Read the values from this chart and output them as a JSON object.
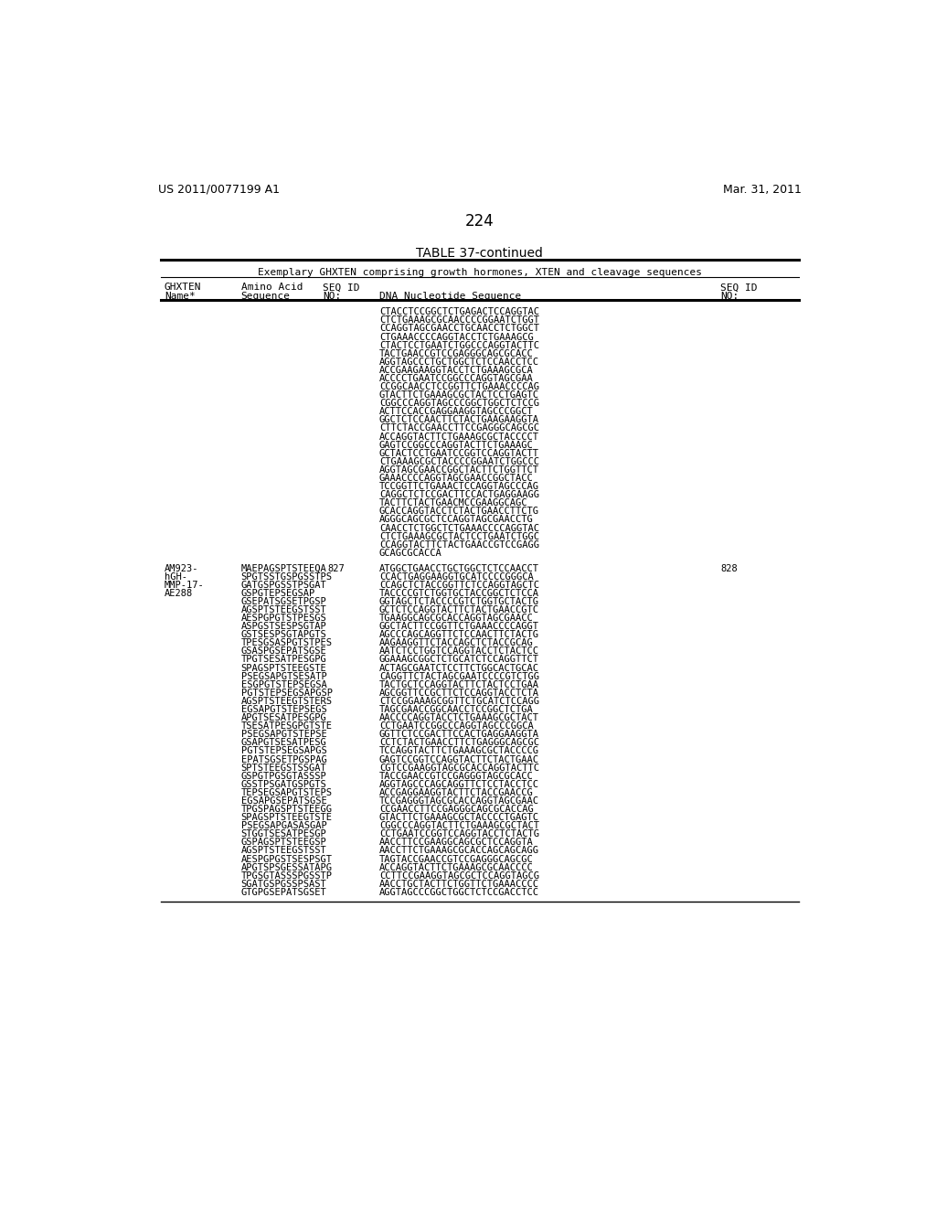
{
  "background_color": "#ffffff",
  "header_left": "US 2011/0077199 A1",
  "header_right": "Mar. 31, 2011",
  "page_number": "224",
  "table_title": "TABLE 37-continued",
  "table_subtitle": "Exemplary GHXTEN comprising growth hormones, XTEN and cleavage sequences",
  "dna_lines_top": [
    "CTACCTCCGGCTCTGAGACTCCAGGTAC",
    "CTCTGAAAGCGCAACCCCGGAATCTGGT",
    "CCAGGTAGCGAACCTGCAACCTCTGGCT",
    "CTGAAACCCCAGGTACCTCTGAAAGCG",
    "CTACTCCTGAATCTGGCCCAGGTACTTC",
    "TACTGAACCGTCCGAGGGCAGCGCACC",
    "AGGTAGCCCTGCTGGCTCTCCAACCTCC",
    "ACCGAAGAAGGTACCTCTGAAAGCGCA",
    "ACCCCTGAATCCGGCCCAGGTAGCGAA",
    "CCGGCAACCTCCGGTTCTGAAACCCCAG",
    "GTACTTCTGAAAGCGCTACTCCTGAGTC",
    "CGGCCCAGGTAGCCCGGCTGGCTCTCCG",
    "ACTTCCACCGAGGAAGGTAGCCCGGCT",
    "GGCTCTCCAACTTCTACTGAAGAAGGTA",
    "CTTCTACCGAACCTTCCGAGGGCAGCGC",
    "ACCAGGTACTTCTGAAAGCGCTACCCCT",
    "GAGTCCGGCCCAGGTACTTCTGAAAGC",
    "GCTACTCCTGAATCCGGTCCAGGTACTT",
    "CTGAAAGCGCTACCCCGGAATCTGGCCC",
    "AGGTAGCGAACCGGCTACTTCTGGTTCT",
    "GAAACCCCAGGTAGCGAACCGGCTACC",
    "TCCGGTTCTGAAACTCCAGGTAGCCCAG",
    "CAGGCTCTCCGACTTCCACTGAGGAAGG",
    "TACTTCTACTGAACMCCGAAGGCAGC",
    "GCACCAGGTACCTCTACTGAACCTTCTG",
    "AGGGCAGCGCTCCAGGTAGCGAACCTG",
    "CAACCTCTGGCTCTGAAACCCCAGGTAC",
    "CTCTGAAAGCGCTACTCCTGAATCTGGC",
    "CCAGGTACTTCTACTGAACCGTCCGAGG",
    "GCAGCGCACCA"
  ],
  "row2_names": [
    "AM923-",
    "hGH-",
    "MMP-17-",
    "AE288"
  ],
  "row2_aa": [
    "MAEPAGSPTSTEEQA",
    "SPGTSSTGSPGSSTPS",
    "GATGSPGSSTPSGAT",
    "GSPGTEPSEGSAP",
    "GSEPATSGSETPGSP",
    "AGSPTSTEEGSTSST",
    "AESPGPGTSTPESGS",
    "ASPGSTSESPSGTAP",
    "GSTSESPSGTAPGTS",
    "TPESGSASPGTSTPES",
    "GSASPGSEPATSGSE",
    "TPGTSESATPESGPG",
    "SPAGSPTSTEEGSTE",
    "PSEGSAPGTSESATP",
    "ESGPGTSTEPSEGSA",
    "PGTSTEPSEGSAPGSP",
    "AGSPTSTEEGTSTERS",
    "EGSAPGTSTEPSEGS",
    "APGTSESATPESGPG",
    "TSESATPESGPGTSTE",
    "PSEGSAPGTSTEPSE",
    "GSAPGTSESATPESG",
    "PGTSTEPSEGSAPGS",
    "EPATSGSETPGSPAG",
    "SPTSTEEGSTSSGAT",
    "GSPGTPGSGTASSSP",
    "GSSTPSGATGSPGTS",
    "TEPSEGSAPGTSTEPS",
    "EGSAPGSEPATSGSE",
    "TPGSPAGSPTSTEEGG",
    "SPAGSPTSTEEGTSTE",
    "PSEGSAPGASASGAP",
    "STGGTSESATPESGP",
    "GSPAGSPTSTEEGSP",
    "AGSPTSTEEGSTSST",
    "AESPGPGSTSESPSGT",
    "APGTSPSGESSATAPG",
    "TPGSGTASSSPGSSTP",
    "SGATGSPGSSPSAST",
    "GTGPGSEPATSGSET"
  ],
  "row2_seq_id": "827",
  "row2_seq_id2": "828",
  "row2_dna": [
    "ATGGCTGAACCTGCTGGCTCTCCAACCT",
    "CCACTGAGGAAGGTGCATCCCCGGGCA",
    "CCAGCTCTACCGGTTCTCCAGGTAGCTC",
    "TACCCCGTCTGGTGCTACCGGCTCTCCA",
    "GGTAGCTCTACCCCGTCTGGTGCTACTG",
    "GCTCTCCAGGTACTTCTACTGAACCGTC",
    "TGAAGGCAGCGCACCAGGTAGCGAACC",
    "GGCTACTTCCGGTTCTGAAACCCCAGGT",
    "AGCCCAGCAGGTTCTCCAACTTCTACTG",
    "AAGAAGGTTCTACCAGCTCTACCGCAG",
    "AATCTCCTGGTCCAGGTACCTCTACTCC",
    "GGAAAGCGGCTCTGCATCTCCAGGTTCT",
    "ACTAGCGAATCTCCTTCTGGCACTGCAC",
    "CAGGTTCTACTAGCGAATCCCCGTCTGG",
    "TACTGCTCCAGGTACTTCTACTCCTGAA",
    "AGCGGTTCCGCTTCTCCAGGTACCTCTA",
    "CTCCGGAAAGCGGTTCTGCATCTCCAGG",
    "TAGCGAACCGGCAACCTCCGGCTCTGA",
    "AACCCCAGGTACCTCTGAAAGCGCTACT",
    "CCTGAATCCGGCCCAGGTAGCCCGGCA",
    "GGTTCTCCGACTTCCACTGAGGAAGGTA",
    "CCTCTACTGAACCTTCTGAGGGCAGCGC",
    "TCCAGGTACTTCTGAAAGCGCTACCCCG",
    "GAGTCCGGTCCAGGTACTTCTACTGAAC",
    "CGTCCGAAGGTAGCGCACCAGGTACTTC",
    "TACCGAACCGTCCGAGGGTAGCGCACC",
    "AGGTAGCCCAGCAGGTTCTCCTACCTCC",
    "ACCGAGGAAGGTACTTCTACCGAACCG",
    "TCCGAGGGTAGCGCACCAGGTAGCGAAC",
    "CCGAACCTTCCGAGGGCAGCGCACCAG",
    "GTACTTCTGAAAGCGCTACCCCTGAGTC",
    "CGGCCCAGGTACTTCTGAAAGCGCTACT",
    "CCTGAATCCGGTCCAGGTACCTCTACTG",
    "AACCTTCCGAAGGCAGCGCTCCAGGTA",
    "AACCTTCTGAAAGCGCACCAGCAGCAGG",
    "TAGTACCGAACCGTCCGAGGGCAGCGC",
    "ACCAGGTACTTCTGAAAGCGCAACCCC",
    "CCTTCCGAAGGTAGCGCTCCAGGTAGCG",
    "AACCTGCTACTTCTGGTTCTGAAACCCC",
    "AGGTAGCCCGGCTGGCTCTCCGACCTCC"
  ]
}
